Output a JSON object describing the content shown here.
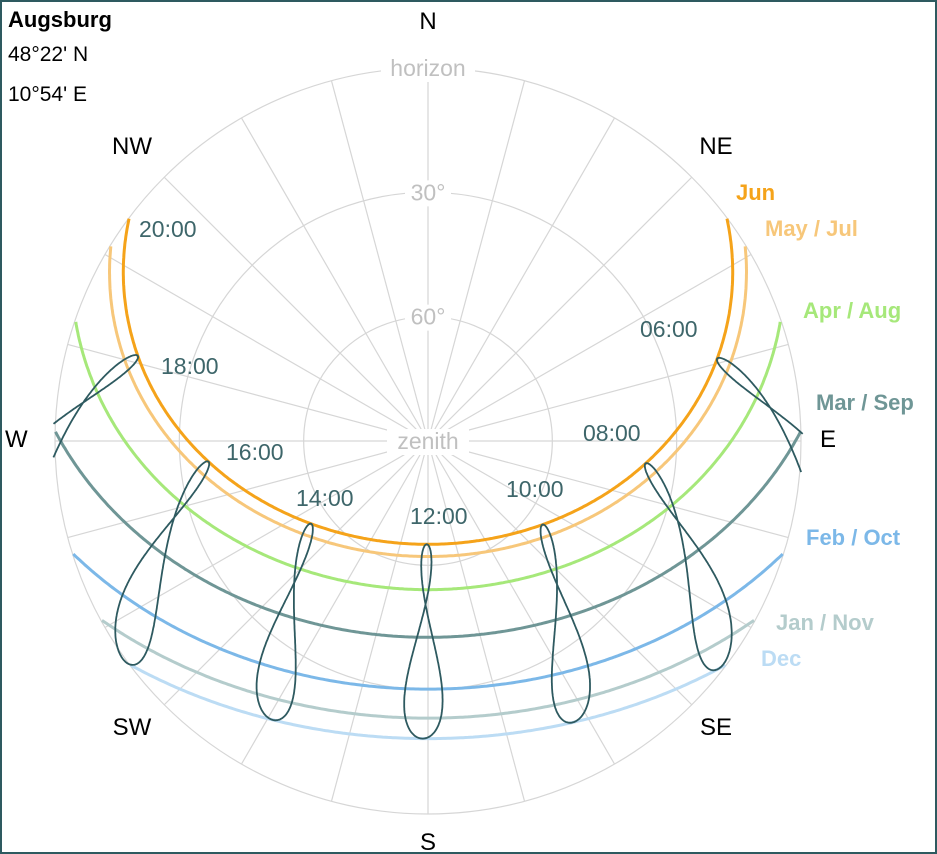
{
  "location": {
    "name": "Augsburg",
    "latitude": "48°22' N",
    "longitude": "10°54' E"
  },
  "chart_data": {
    "type": "polar-sun-path",
    "projection": "zenith at center, horizon at outer circle, north at top, east at right",
    "compass": {
      "N": "N",
      "NE": "NE",
      "E": "E",
      "SE": "SE",
      "S": "S",
      "SW": "SW",
      "W": "W",
      "NW": "NW"
    },
    "altitude_rings": [
      {
        "altitude": 0,
        "label": "horizon"
      },
      {
        "altitude": 30,
        "label": "30°"
      },
      {
        "altitude": 60,
        "label": "60°"
      },
      {
        "altitude": 90,
        "label": "zenith"
      }
    ],
    "radial_lines_deg_step": 15,
    "latitude_deg": 48.37,
    "hour_labels": [
      {
        "hour": 6,
        "label": "06:00"
      },
      {
        "hour": 8,
        "label": "08:00"
      },
      {
        "hour": 10,
        "label": "10:00"
      },
      {
        "hour": 12,
        "label": "12:00"
      },
      {
        "hour": 14,
        "label": "14:00"
      },
      {
        "hour": 16,
        "label": "16:00"
      },
      {
        "hour": 18,
        "label": "18:00"
      },
      {
        "hour": 20,
        "label": "20:00"
      }
    ],
    "analemma_hours": [
      6,
      8,
      10,
      12,
      14,
      16,
      18,
      20
    ],
    "series": [
      {
        "name": "Jun",
        "declination": 23.44,
        "color": "#f5a31a"
      },
      {
        "name": "May / Jul",
        "declination": 20.5,
        "color": "#f7c77a"
      },
      {
        "name": "Apr / Aug",
        "declination": 12.5,
        "color": "#a6e87a"
      },
      {
        "name": "Mar / Sep",
        "declination": 1.0,
        "color": "#6f9696"
      },
      {
        "name": "Feb / Oct",
        "declination": -11.5,
        "color": "#7cb8e8"
      },
      {
        "name": "Jan / Nov",
        "declination": -18.5,
        "color": "#b4cccc"
      },
      {
        "name": "Dec",
        "declination": -23.44,
        "color": "#bcdcf4"
      }
    ],
    "analemma_color": "#2e5a60"
  }
}
